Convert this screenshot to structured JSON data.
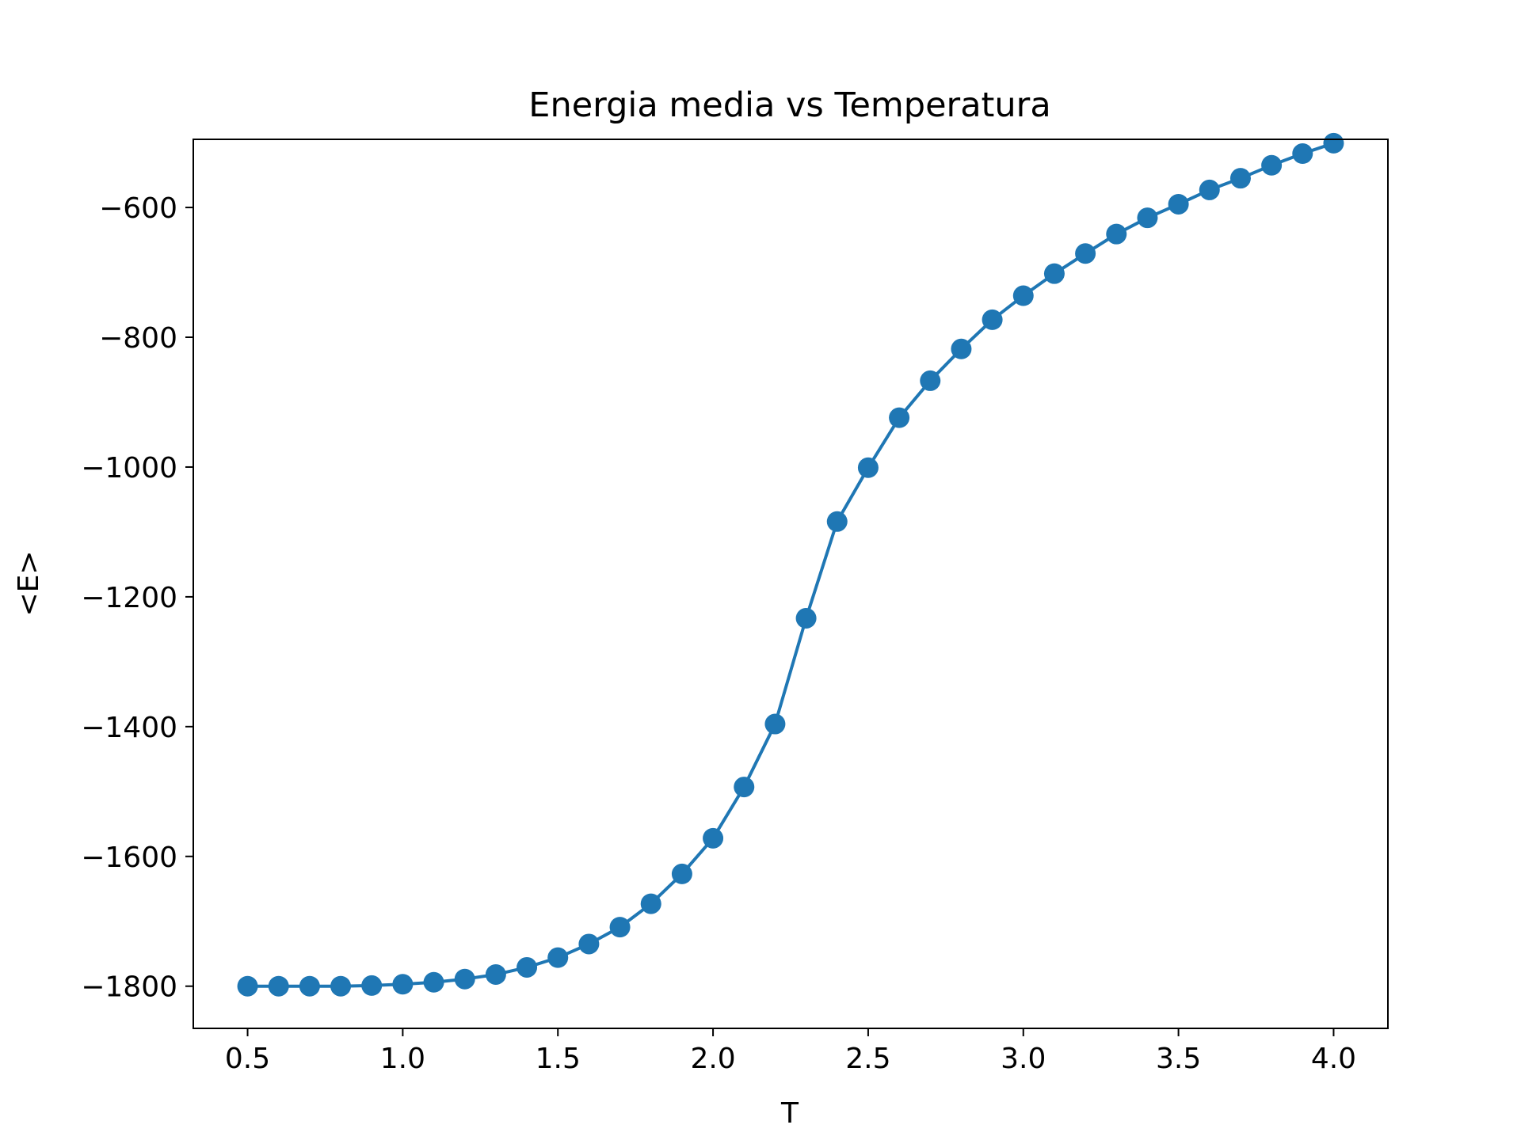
{
  "chart_data": {
    "type": "line",
    "title": "Energia media vs Temperatura",
    "xlabel": "T",
    "ylabel": "<E>",
    "xlim": [
      0.325,
      4.175
    ],
    "ylim": [
      -1865,
      -495
    ],
    "xticks": [
      0.5,
      1.0,
      1.5,
      2.0,
      2.5,
      3.0,
      3.5,
      4.0
    ],
    "xtick_labels": [
      "0.5",
      "1.0",
      "1.5",
      "2.0",
      "2.5",
      "3.0",
      "3.5",
      "4.0"
    ],
    "yticks": [
      -1800,
      -1600,
      -1400,
      -1200,
      -1000,
      -800,
      -600
    ],
    "ytick_labels": [
      "−1800",
      "−1600",
      "−1400",
      "−1200",
      "−1000",
      "−800",
      "−600"
    ],
    "grid": false,
    "color": "#1f77b4",
    "marker": "circle",
    "series": [
      {
        "x": [
          0.5,
          0.6,
          0.7,
          0.8,
          0.9,
          1.0,
          1.1,
          1.2,
          1.3,
          1.4,
          1.5,
          1.6,
          1.7,
          1.8,
          1.9,
          2.0,
          2.1,
          2.2,
          2.3,
          2.4,
          2.5,
          2.6,
          2.7,
          2.8,
          2.9,
          3.0,
          3.1,
          3.2,
          3.3,
          3.4,
          3.5,
          3.6,
          3.7,
          3.8,
          3.9,
          4.0
        ],
        "y": [
          -1800,
          -1800,
          -1800,
          -1800,
          -1799,
          -1797,
          -1794,
          -1789,
          -1782,
          -1771,
          -1756,
          -1735,
          -1709,
          -1673,
          -1627,
          -1572,
          -1493,
          -1396,
          -1233,
          -1084,
          -1001,
          -924,
          -867,
          -818,
          -773,
          -736,
          -702,
          -671,
          -641,
          -616,
          -595,
          -573,
          -555,
          -535,
          -517,
          -501
        ]
      }
    ]
  }
}
